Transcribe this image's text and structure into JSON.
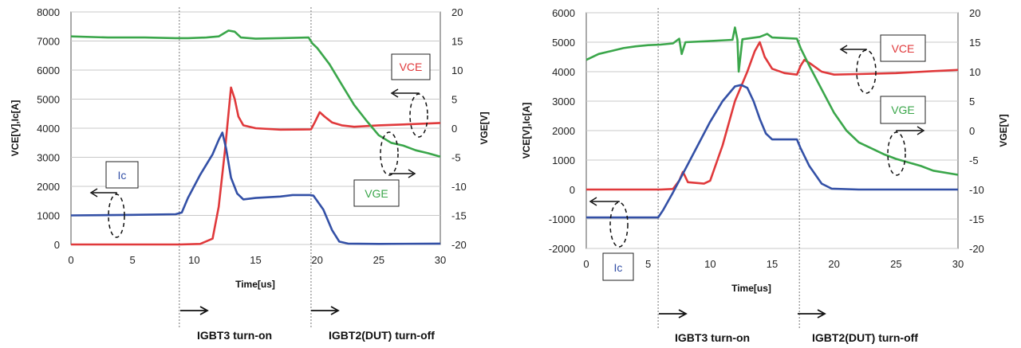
{
  "colors": {
    "vce": "#e0393b",
    "ic": "#3350a6",
    "vge": "#3aa64a",
    "grid": "#c8c8c8"
  },
  "chart_data": [
    {
      "type": "line",
      "xlabel": "Time[us]",
      "ylabel": "VCE[V],Ic[A]",
      "y2label": "VGE[V]",
      "xlim": [
        0,
        30
      ],
      "ylim": [
        0,
        8000
      ],
      "y2lim": [
        -20,
        20
      ],
      "x_ticks": [
        0,
        5,
        10,
        15,
        20,
        25,
        30
      ],
      "y_ticks": [
        0,
        1000,
        2000,
        3000,
        4000,
        5000,
        6000,
        7000,
        8000
      ],
      "y2_ticks": [
        -20,
        -15,
        -10,
        -5,
        0,
        5,
        10,
        15,
        20
      ],
      "grid": "horizontal",
      "series": [
        {
          "name": "VCE",
          "axis": "left",
          "points": [
            [
              0,
              0
            ],
            [
              8.8,
              0
            ],
            [
              10.5,
              20
            ],
            [
              11.5,
              200
            ],
            [
              12,
              1300
            ],
            [
              12.5,
              3200
            ],
            [
              13,
              5400
            ],
            [
              13.3,
              5000
            ],
            [
              13.6,
              4400
            ],
            [
              14,
              4100
            ],
            [
              15,
              4000
            ],
            [
              17,
              3950
            ],
            [
              19.5,
              3960
            ],
            [
              19.8,
              4200
            ],
            [
              20.2,
              4550
            ],
            [
              20.6,
              4400
            ],
            [
              21.2,
              4200
            ],
            [
              22,
              4100
            ],
            [
              23,
              4050
            ],
            [
              25,
              4100
            ],
            [
              27,
              4130
            ],
            [
              30,
              4180
            ]
          ]
        },
        {
          "name": "Ic",
          "axis": "left",
          "points": [
            [
              0,
              1000
            ],
            [
              5,
              1020
            ],
            [
              8.5,
              1040
            ],
            [
              9,
              1100
            ],
            [
              9.5,
              1600
            ],
            [
              10.5,
              2400
            ],
            [
              11.5,
              3100
            ],
            [
              12,
              3600
            ],
            [
              12.3,
              3850
            ],
            [
              12.6,
              3300
            ],
            [
              13,
              2300
            ],
            [
              13.5,
              1750
            ],
            [
              14,
              1550
            ],
            [
              15,
              1600
            ],
            [
              17,
              1650
            ],
            [
              18,
              1700
            ],
            [
              19.4,
              1700
            ],
            [
              19.7,
              1680
            ],
            [
              20.5,
              1200
            ],
            [
              21.2,
              500
            ],
            [
              21.8,
              100
            ],
            [
              22.5,
              30
            ],
            [
              25,
              20
            ],
            [
              30,
              30
            ]
          ]
        },
        {
          "name": "VGE",
          "axis": "right",
          "points": [
            [
              0,
              15.8
            ],
            [
              3,
              15.6
            ],
            [
              6,
              15.6
            ],
            [
              8.5,
              15.5
            ],
            [
              9.5,
              15.5
            ],
            [
              11,
              15.6
            ],
            [
              12,
              15.8
            ],
            [
              12.8,
              16.8
            ],
            [
              13.3,
              16.6
            ],
            [
              13.8,
              15.6
            ],
            [
              15,
              15.4
            ],
            [
              17,
              15.5
            ],
            [
              19.3,
              15.6
            ],
            [
              19.6,
              14.6
            ],
            [
              20,
              13.8
            ],
            [
              21,
              11
            ],
            [
              22,
              7.5
            ],
            [
              23,
              4
            ],
            [
              24,
              1.3
            ],
            [
              25,
              -1.2
            ],
            [
              26,
              -2.5
            ],
            [
              27,
              -3
            ],
            [
              28,
              -3.8
            ],
            [
              29,
              -4.3
            ],
            [
              30,
              -4.9
            ]
          ]
        }
      ],
      "labels": {
        "vce": "VCE",
        "ic": "Ic",
        "vge": "VGE"
      },
      "phases": {
        "on": "IGBT3 turn-on",
        "off": "IGBT2(DUT) turn-off"
      },
      "markers_at_x": [
        8.8,
        19.5
      ]
    },
    {
      "type": "line",
      "xlabel": "Time[us]",
      "ylabel": "VCE[V],Ic[A]",
      "y2label": "VGE[V]",
      "xlim": [
        0,
        30
      ],
      "ylim": [
        -2000,
        6000
      ],
      "y2lim": [
        -20,
        20
      ],
      "x_ticks": [
        0,
        5,
        10,
        15,
        20,
        25,
        30
      ],
      "y_ticks": [
        -2000,
        -1000,
        0,
        1000,
        2000,
        3000,
        4000,
        5000,
        6000
      ],
      "y2_ticks": [
        -20,
        -15,
        -10,
        -5,
        0,
        5,
        10,
        15,
        20
      ],
      "grid": "horizontal",
      "series": [
        {
          "name": "VCE",
          "axis": "left",
          "points": [
            [
              0,
              0
            ],
            [
              6,
              0
            ],
            [
              7,
              20
            ],
            [
              7.5,
              300
            ],
            [
              7.8,
              600
            ],
            [
              8.2,
              250
            ],
            [
              9.5,
              200
            ],
            [
              10,
              300
            ],
            [
              11,
              1500
            ],
            [
              12,
              3000
            ],
            [
              13,
              4000
            ],
            [
              13.6,
              4700
            ],
            [
              14,
              5000
            ],
            [
              14.4,
              4500
            ],
            [
              15,
              4100
            ],
            [
              16,
              3950
            ],
            [
              17,
              3900
            ],
            [
              17.3,
              4200
            ],
            [
              17.6,
              4400
            ],
            [
              18,
              4300
            ],
            [
              19,
              4000
            ],
            [
              20,
              3900
            ],
            [
              22,
              3920
            ],
            [
              25,
              3950
            ],
            [
              28,
              4020
            ],
            [
              30,
              4060
            ]
          ]
        },
        {
          "name": "Ic",
          "axis": "left",
          "points": [
            [
              0,
              -950
            ],
            [
              4,
              -950
            ],
            [
              5.8,
              -950
            ],
            [
              6.2,
              -700
            ],
            [
              7,
              -100
            ],
            [
              8,
              700
            ],
            [
              9,
              1500
            ],
            [
              10,
              2300
            ],
            [
              11,
              3000
            ],
            [
              12,
              3500
            ],
            [
              12.5,
              3550
            ],
            [
              13,
              3450
            ],
            [
              13.5,
              3000
            ],
            [
              14,
              2400
            ],
            [
              14.5,
              1900
            ],
            [
              15,
              1700
            ],
            [
              17,
              1700
            ],
            [
              17.3,
              1400
            ],
            [
              18,
              800
            ],
            [
              19,
              200
            ],
            [
              19.8,
              30
            ],
            [
              22,
              0
            ],
            [
              25,
              0
            ],
            [
              30,
              0
            ]
          ]
        },
        {
          "name": "VGE",
          "axis": "right",
          "points": [
            [
              0,
              12
            ],
            [
              1,
              13
            ],
            [
              2,
              13.5
            ],
            [
              3,
              14
            ],
            [
              4,
              14.3
            ],
            [
              5,
              14.5
            ],
            [
              6,
              14.6
            ],
            [
              7,
              14.8
            ],
            [
              7.5,
              15.6
            ],
            [
              7.7,
              13
            ],
            [
              8,
              15
            ],
            [
              10,
              15.2
            ],
            [
              11.8,
              15.4
            ],
            [
              12,
              17.5
            ],
            [
              12.2,
              15.4
            ],
            [
              12.3,
              10
            ],
            [
              12.6,
              15.5
            ],
            [
              14,
              15.9
            ],
            [
              14.6,
              16.4
            ],
            [
              15,
              15.8
            ],
            [
              17,
              15.6
            ],
            [
              17.3,
              14
            ],
            [
              18,
              11
            ],
            [
              19,
              7
            ],
            [
              20,
              3
            ],
            [
              21,
              0
            ],
            [
              22,
              -2
            ],
            [
              23,
              -3
            ],
            [
              24,
              -4
            ],
            [
              25,
              -4.8
            ],
            [
              27,
              -6
            ],
            [
              28,
              -6.8
            ],
            [
              30,
              -7.5
            ]
          ]
        }
      ],
      "labels": {
        "vce": "VCE",
        "ic": "Ic",
        "vge": "VGE"
      },
      "phases": {
        "on": "IGBT3 turn-on",
        "off": "IGBT2(DUT) turn-off"
      },
      "markers_at_x": [
        5.8,
        17.2
      ]
    }
  ]
}
